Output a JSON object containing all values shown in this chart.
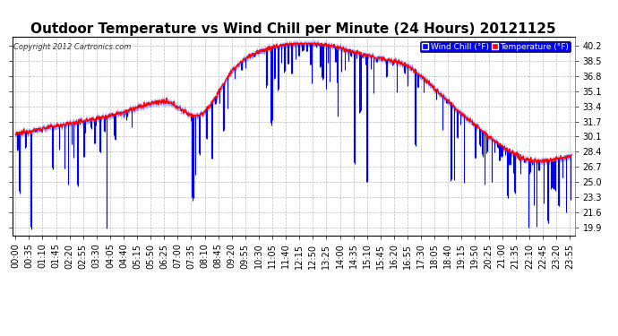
{
  "title": "Outdoor Temperature vs Wind Chill per Minute (24 Hours) 20121125",
  "copyright": "Copyright 2012 Cartronics.com",
  "legend_wind_chill": "Wind Chill (°F)",
  "legend_temperature": "Temperature (°F)",
  "yticks": [
    19.9,
    21.6,
    23.3,
    25.0,
    26.7,
    28.4,
    30.1,
    31.7,
    33.4,
    35.1,
    36.8,
    38.5,
    40.2
  ],
  "ylim": [
    19.0,
    41.2
  ],
  "background_color": "#ffffff",
  "grid_color": "#bbbbbb",
  "wind_chill_color": "#0000ff",
  "temperature_color": "#ff0000",
  "title_fontsize": 11,
  "axis_fontsize": 7,
  "num_minutes": 1440,
  "tick_interval": 35
}
